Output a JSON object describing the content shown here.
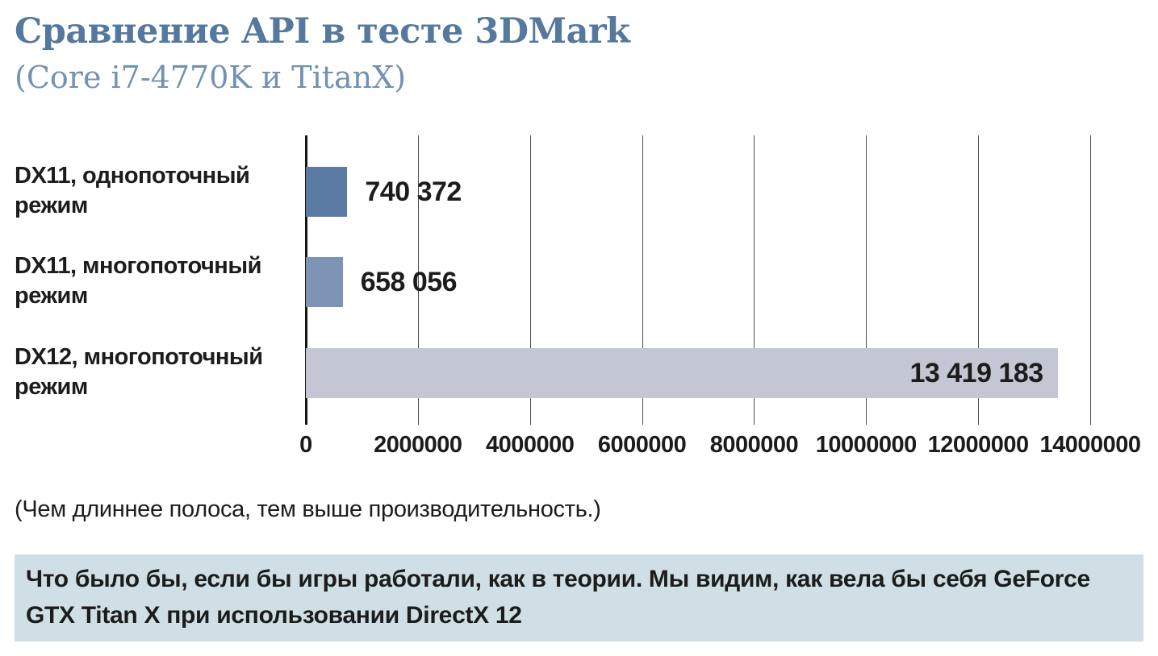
{
  "header": {
    "title": "Сравнение API в тесте 3DMark",
    "subtitle": "(Core i7-4770K и TitanX)",
    "title_color": "#54789e",
    "subtitle_color": "#7392b3"
  },
  "chart_data": {
    "type": "bar",
    "orientation": "horizontal",
    "title": "Сравнение API в тесте 3DMark (Core i7-4770K и TitanX)",
    "categories": [
      "DX11, однопоточный режим",
      "DX11, многопоточный режим",
      "DX12, многопоточный режим"
    ],
    "values": [
      740372,
      658056,
      13419183
    ],
    "value_labels": [
      "740 372",
      "658 056",
      "13 419 183"
    ],
    "bar_colors": [
      "#5c7ba4",
      "#7e93b5",
      "#c3c7d3"
    ],
    "xlim": [
      0,
      14000000
    ],
    "x_ticks": [
      0,
      2000000,
      4000000,
      6000000,
      8000000,
      10000000,
      12000000,
      14000000
    ],
    "x_tick_labels": [
      "0",
      "2000000",
      "4000000",
      "6000000",
      "8000000",
      "10000000",
      "12000000",
      "14000000"
    ],
    "grid": true,
    "gridline_color": "#4c4c4c",
    "legend": "none"
  },
  "note": "(Чем длиннее полоса, тем выше производительность.)",
  "caption": {
    "text": "Что было бы, если бы игры работали, как в теории. Мы видим, как вела бы себя GeForce GTX Titan X при использовании DirectX 12",
    "background": "#cfdfe5"
  }
}
